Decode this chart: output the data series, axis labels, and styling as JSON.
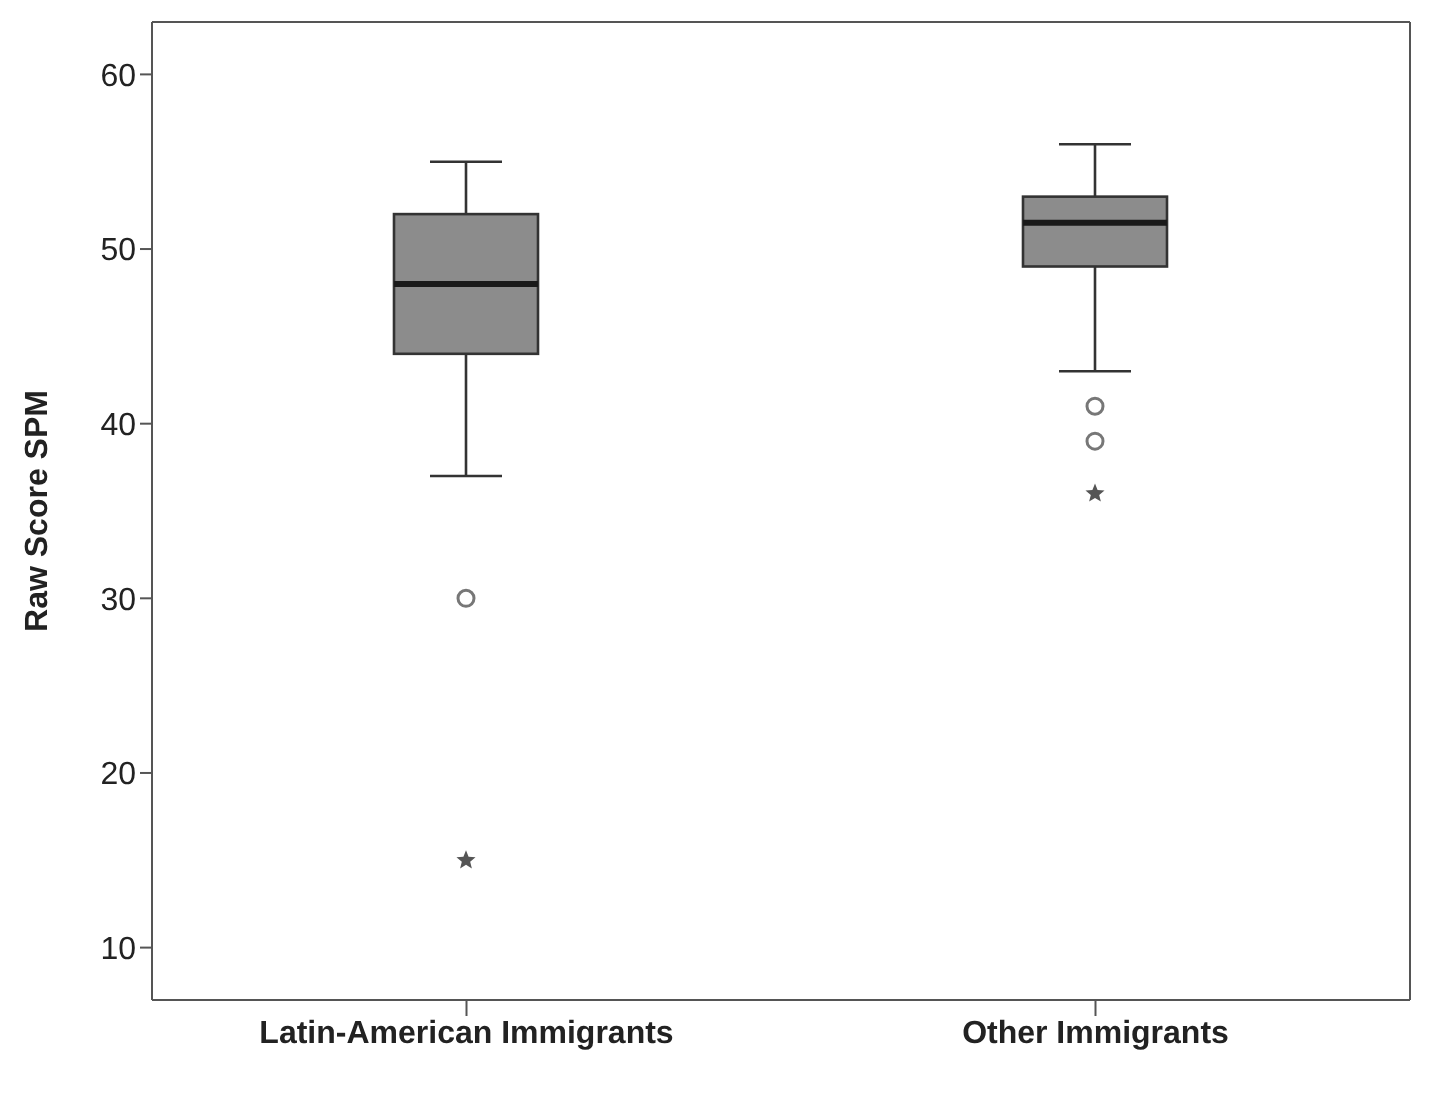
{
  "chart_data": {
    "type": "box",
    "ylabel": "Raw Score SPM",
    "categories": [
      "Latin-American Immigrants",
      "Other Immigrants"
    ],
    "boxes": [
      {
        "low": 37,
        "q1": 44,
        "median": 48,
        "q3": 52,
        "high": 55,
        "outliers": [
          30,
          15
        ]
      },
      {
        "low": 43,
        "q1": 49,
        "median": 51.5,
        "q3": 53,
        "high": 56,
        "outliers": [
          41,
          39,
          36
        ]
      }
    ],
    "color": "#8c8c8c",
    "ylim": [
      7,
      63
    ],
    "yticks": [
      10,
      20,
      30,
      40,
      50,
      60
    ],
    "grid": false
  }
}
